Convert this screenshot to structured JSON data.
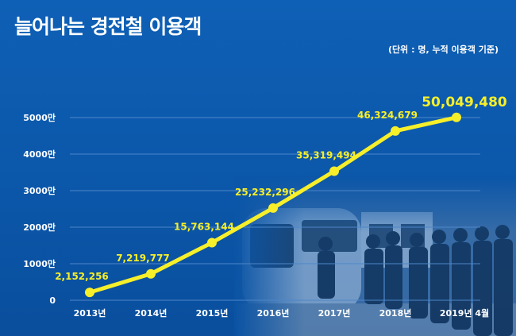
{
  "title": "늘어나는 경전철 이용객",
  "unit_note": "(단위 : 명, 누적 이용객 기준)",
  "colors": {
    "background": "#0b5bb0",
    "line": "#f6ef2a",
    "point": "#f6ef2a",
    "label": "#f6ef2a",
    "axis_text": "#ffffff"
  },
  "chart_data": {
    "type": "line",
    "title": "늘어나는 경전철 이용객",
    "xlabel": "",
    "ylabel": "",
    "categories": [
      "2013년",
      "2014년",
      "2015년",
      "2016년",
      "2017년",
      "2018년",
      "2019년 4월"
    ],
    "series": [
      {
        "values": [
          2152256,
          7219777,
          15763144,
          25232296,
          35319494,
          46324679,
          50049480
        ]
      }
    ],
    "data_labels": [
      "2,152,256",
      "7,219,777",
      "15,763,144",
      "25,232,296",
      "35,319,494",
      "46,324,679",
      "50,049,480"
    ],
    "yticks": [
      {
        "value": 0,
        "label": "0"
      },
      {
        "value": 10000000,
        "label": "1000만"
      },
      {
        "value": 20000000,
        "label": "2000만"
      },
      {
        "value": 30000000,
        "label": "3000만"
      },
      {
        "value": 40000000,
        "label": "4000만"
      },
      {
        "value": 50000000,
        "label": "5000만"
      }
    ],
    "ylim": [
      0,
      50000000
    ],
    "grid": true,
    "legend": "none"
  }
}
